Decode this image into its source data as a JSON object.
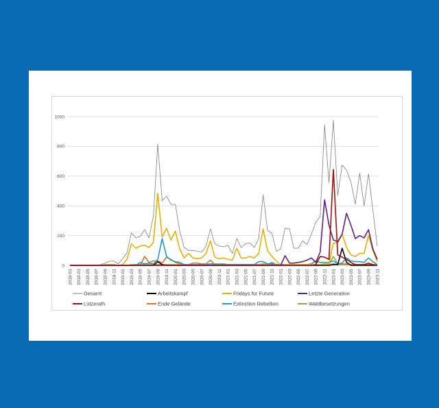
{
  "chart_data": {
    "type": "line",
    "title": "",
    "xlabel": "",
    "ylabel": "",
    "ylim": [
      0,
      1000
    ],
    "yticks": [
      "0",
      "200",
      "400",
      "600",
      "800",
      "1000"
    ],
    "grid": true,
    "legend_position": "bottom",
    "x": [
      "2018-01",
      "2018-02",
      "2018-03",
      "2018-04",
      "2018-05",
      "2018-06",
      "2018-07",
      "2018-08",
      "2018-09",
      "2018-10",
      "2018-11",
      "2018-12",
      "2019-01",
      "2019-02",
      "2019-03",
      "2019-04",
      "2019-05",
      "2019-06",
      "2019-07",
      "2019-08",
      "2019-09",
      "2019-10",
      "2019-11",
      "2019-12",
      "2020-01",
      "2020-02",
      "2020-03",
      "2020-04",
      "2020-05",
      "2020-06",
      "2020-07",
      "2020-08",
      "2020-09",
      "2020-10",
      "2020-11",
      "2020-12",
      "2021-01",
      "2021-02",
      "2021-03",
      "2021-04",
      "2021-05",
      "2021-06",
      "2021-07",
      "2021-08",
      "2021-09",
      "2021-10",
      "2021-11",
      "2021-12",
      "2022-01",
      "2022-02",
      "2022-03",
      "2022-04",
      "2022-05",
      "2022-06",
      "2022-07",
      "2022-08",
      "2022-09",
      "2022-10",
      "2022-11",
      "2022-12",
      "2023-01",
      "2023-02",
      "2023-03",
      "2023-04",
      "2023-05",
      "2023-06",
      "2023-07",
      "2023-08",
      "2023-09",
      "2023-10",
      "2023-11"
    ],
    "series": [
      {
        "name": "Gesamt",
        "color": "#7f7f7f",
        "values": [
          0,
          0,
          0,
          0,
          2,
          0,
          0,
          5,
          15,
          28,
          28,
          10,
          45,
          85,
          220,
          185,
          195,
          240,
          185,
          330,
          815,
          435,
          465,
          410,
          410,
          230,
          120,
          100,
          100,
          95,
          90,
          130,
          245,
          145,
          130,
          125,
          135,
          80,
          180,
          120,
          145,
          150,
          120,
          180,
          475,
          235,
          215,
          95,
          110,
          250,
          245,
          115,
          115,
          165,
          140,
          210,
          290,
          330,
          945,
          555,
          975,
          470,
          675,
          640,
          560,
          410,
          620,
          400,
          615,
          370,
          130
        ]
      },
      {
        "name": "Arbeitskampf",
        "color": "#000000",
        "values": [
          0,
          0,
          0,
          0,
          0,
          0,
          0,
          0,
          0,
          0,
          0,
          0,
          0,
          0,
          0,
          0,
          0,
          0,
          0,
          0,
          25,
          5,
          0,
          0,
          0,
          0,
          0,
          0,
          0,
          0,
          0,
          0,
          0,
          0,
          0,
          0,
          0,
          0,
          0,
          0,
          0,
          0,
          0,
          0,
          0,
          0,
          0,
          0,
          0,
          0,
          0,
          0,
          0,
          0,
          0,
          0,
          0,
          0,
          0,
          0,
          5,
          5,
          115,
          20,
          0,
          0,
          0,
          0,
          0,
          0,
          0
        ]
      },
      {
        "name": "Fridays for Future",
        "color": "#e8b000",
        "values": [
          0,
          0,
          0,
          0,
          0,
          0,
          0,
          0,
          2,
          2,
          0,
          0,
          5,
          40,
          145,
          115,
          130,
          135,
          120,
          155,
          485,
          190,
          250,
          170,
          230,
          110,
          50,
          80,
          50,
          45,
          50,
          80,
          165,
          55,
          45,
          50,
          40,
          35,
          115,
          50,
          50,
          60,
          50,
          80,
          245,
          100,
          60,
          30,
          0,
          5,
          5,
          5,
          5,
          5,
          5,
          5,
          5,
          5,
          5,
          10,
          150,
          150,
          210,
          120,
          70,
          60,
          80,
          80,
          200,
          100,
          25
        ]
      },
      {
        "name": "Letzte Generation",
        "color": "#5b1f86",
        "values": [
          0,
          0,
          0,
          0,
          0,
          0,
          0,
          0,
          0,
          0,
          0,
          0,
          0,
          0,
          0,
          0,
          0,
          0,
          0,
          0,
          0,
          0,
          0,
          0,
          0,
          0,
          0,
          0,
          0,
          0,
          0,
          0,
          0,
          0,
          0,
          0,
          0,
          0,
          0,
          0,
          0,
          0,
          0,
          0,
          0,
          0,
          0,
          0,
          0,
          65,
          15,
          15,
          20,
          25,
          35,
          50,
          20,
          90,
          440,
          270,
          170,
          160,
          210,
          350,
          270,
          180,
          200,
          185,
          240,
          110,
          40
        ]
      },
      {
        "name": "Lützerath",
        "color": "#a00d0d",
        "values": [
          0,
          0,
          0,
          0,
          0,
          0,
          0,
          0,
          0,
          0,
          0,
          0,
          0,
          0,
          0,
          0,
          0,
          0,
          0,
          0,
          0,
          0,
          0,
          0,
          0,
          0,
          0,
          0,
          0,
          0,
          0,
          0,
          0,
          0,
          0,
          0,
          0,
          0,
          0,
          0,
          0,
          0,
          0,
          0,
          0,
          0,
          0,
          0,
          0,
          0,
          0,
          0,
          0,
          0,
          0,
          0,
          5,
          60,
          55,
          40,
          645,
          70,
          55,
          40,
          20,
          5,
          5,
          5,
          15,
          5,
          0
        ]
      },
      {
        "name": "Ende Gelände",
        "color": "#e0702a",
        "values": [
          0,
          0,
          0,
          0,
          0,
          0,
          0,
          0,
          0,
          0,
          0,
          0,
          0,
          0,
          0,
          0,
          0,
          60,
          20,
          30,
          30,
          15,
          55,
          40,
          20,
          10,
          5,
          5,
          15,
          15,
          10,
          10,
          35,
          5,
          5,
          5,
          5,
          5,
          5,
          5,
          5,
          5,
          5,
          5,
          5,
          5,
          20,
          5,
          5,
          5,
          5,
          5,
          5,
          5,
          5,
          5,
          5,
          5,
          5,
          5,
          10,
          5,
          5,
          5,
          5,
          5,
          5,
          5,
          5,
          5,
          5
        ]
      },
      {
        "name": "Extinction Rebellion",
        "color": "#1a9ad1",
        "values": [
          0,
          0,
          0,
          0,
          0,
          0,
          0,
          0,
          0,
          0,
          0,
          0,
          0,
          0,
          0,
          0,
          20,
          10,
          15,
          10,
          40,
          180,
          60,
          35,
          25,
          20,
          5,
          5,
          5,
          5,
          5,
          5,
          10,
          5,
          5,
          5,
          5,
          5,
          5,
          5,
          5,
          5,
          5,
          25,
          25,
          10,
          10,
          5,
          5,
          5,
          5,
          5,
          5,
          5,
          5,
          10,
          30,
          20,
          20,
          20,
          30,
          10,
          15,
          50,
          30,
          25,
          25,
          20,
          50,
          25,
          5
        ]
      },
      {
        "name": "Waldbesetzungen",
        "color": "#7ab83c",
        "values": [
          0,
          0,
          0,
          0,
          0,
          0,
          0,
          0,
          5,
          5,
          5,
          0,
          0,
          0,
          5,
          5,
          5,
          5,
          5,
          5,
          5,
          5,
          5,
          5,
          5,
          5,
          5,
          5,
          5,
          5,
          5,
          5,
          10,
          10,
          10,
          10,
          5,
          5,
          5,
          5,
          5,
          5,
          5,
          5,
          10,
          5,
          5,
          5,
          5,
          5,
          5,
          5,
          5,
          5,
          5,
          5,
          5,
          5,
          10,
          10,
          60,
          10,
          10,
          10,
          5,
          5,
          5,
          5,
          5,
          5,
          5
        ]
      }
    ]
  }
}
